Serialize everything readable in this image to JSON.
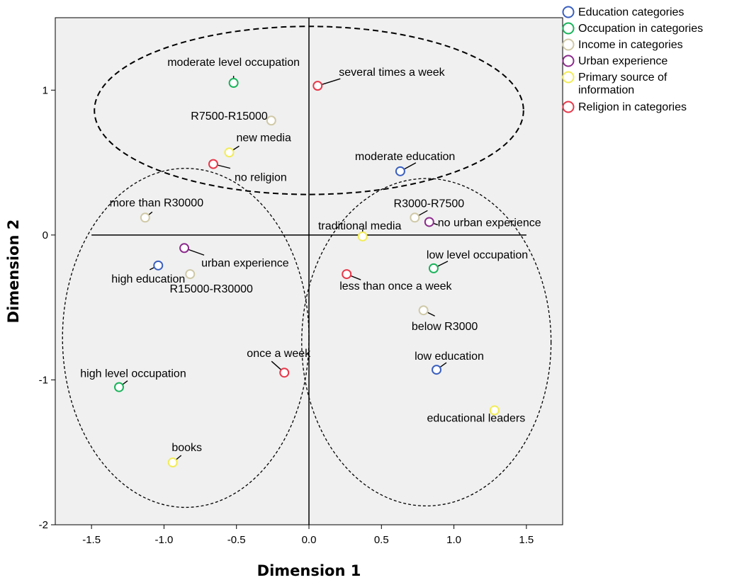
{
  "chart_data": {
    "type": "scatter",
    "xlabel": "Dimension 1",
    "ylabel": "Dimension 2",
    "xlim": [
      -1.75,
      1.75
    ],
    "ylim": [
      -2,
      1.5
    ],
    "xticks": [
      -1.5,
      -1.0,
      -0.5,
      0.0,
      0.5,
      1.0,
      1.5
    ],
    "xtick_labels": [
      "-1.5",
      "-1.0",
      "-0.5",
      "0.0",
      "0.5",
      "1.0",
      "1.5"
    ],
    "yticks": [
      1,
      0,
      -1,
      -2
    ],
    "ytick_labels": [
      "1",
      "0",
      "-1",
      "-2"
    ],
    "grid": false,
    "legend_position": "right",
    "series": [
      {
        "name": "Education categories",
        "color": "#3a5fbf",
        "points": [
          {
            "label": "moderate education",
            "x": 0.63,
            "y": 0.44
          },
          {
            "label": "high education",
            "x": -1.04,
            "y": -0.21
          },
          {
            "label": "low education",
            "x": 0.88,
            "y": -0.93
          }
        ]
      },
      {
        "name": "Occupation in categories",
        "color": "#19b35a",
        "points": [
          {
            "label": "moderate level occupation",
            "x": -0.52,
            "y": 1.05
          },
          {
            "label": "low level occupation",
            "x": 0.86,
            "y": -0.23
          },
          {
            "label": "high level occupation",
            "x": -1.31,
            "y": -1.05
          }
        ]
      },
      {
        "name": "Income in categories",
        "color": "#cfc9a7",
        "points": [
          {
            "label": "R7500-R15000",
            "x": -0.26,
            "y": 0.79
          },
          {
            "label": "more than R30000",
            "x": -1.13,
            "y": 0.12
          },
          {
            "label": "R3000-R7500",
            "x": 0.73,
            "y": 0.12
          },
          {
            "label": "R15000-R30000",
            "x": -0.82,
            "y": -0.27
          },
          {
            "label": "below R3000",
            "x": 0.79,
            "y": -0.52
          }
        ]
      },
      {
        "name": "Urban experience",
        "color": "#8c2c8c",
        "points": [
          {
            "label": "no urban experience",
            "x": 0.83,
            "y": 0.09
          },
          {
            "label": "urban experience",
            "x": -0.86,
            "y": -0.09
          }
        ]
      },
      {
        "name": "Primary source of information",
        "color": "#f2ec58",
        "points": [
          {
            "label": "new media",
            "x": -0.55,
            "y": 0.57
          },
          {
            "label": "traditional media",
            "x": 0.37,
            "y": -0.01
          },
          {
            "label": "educational leaders",
            "x": 1.28,
            "y": -1.21
          },
          {
            "label": "books",
            "x": -0.94,
            "y": -1.57
          }
        ]
      },
      {
        "name": "Religion in categories",
        "color": "#e8384a",
        "points": [
          {
            "label": "several times a week",
            "x": 0.06,
            "y": 1.03
          },
          {
            "label": "no religion",
            "x": -0.66,
            "y": 0.49
          },
          {
            "label": "less than once a week",
            "x": 0.26,
            "y": -0.27
          },
          {
            "label": "once a week",
            "x": -0.17,
            "y": -0.95
          }
        ]
      }
    ],
    "legend": [
      {
        "label": "Education categories",
        "color": "#3a5fbf"
      },
      {
        "label": "Occupation in categories",
        "color": "#19b35a"
      },
      {
        "label": "Income in categories",
        "color": "#cfc9a7"
      },
      {
        "label": "Urban experience",
        "color": "#8c2c8c"
      },
      {
        "label": "Primary source of information",
        "color": "#f2ec58"
      },
      {
        "label": "Religion in categories",
        "color": "#e8384a"
      }
    ]
  }
}
